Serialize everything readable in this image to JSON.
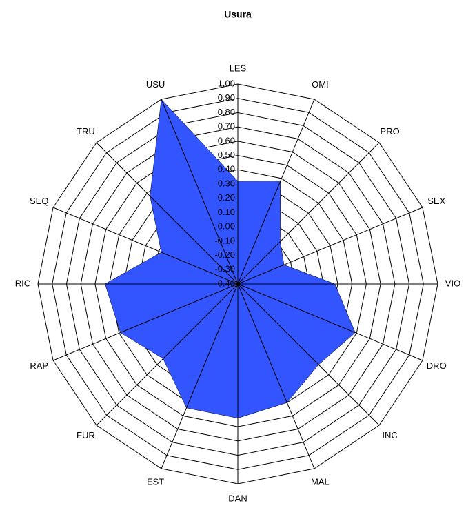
{
  "chart_data": {
    "type": "radar",
    "title": "Usura",
    "categories": [
      "LES",
      "OMI",
      "PRO",
      "SEX",
      "VIO",
      "DRO",
      "INC",
      "MAL",
      "DAN",
      "EST",
      "FUR",
      "RAP",
      "RIC",
      "SEQ",
      "TRU",
      "USU"
    ],
    "series": [
      {
        "name": "Usura",
        "color": "#3355ff",
        "values": [
          0.32,
          0.38,
          0.02,
          -0.05,
          0.28,
          0.49,
          0.4,
          0.5,
          0.54,
          0.54,
          0.34,
          0.49,
          0.53,
          0.18,
          0.47,
          1.0
        ]
      }
    ],
    "ylim": [
      -0.4,
      1.0
    ],
    "yticks": [
      {
        "value": 1.0,
        "label": "1.00"
      },
      {
        "value": 0.9,
        "label": "0.90"
      },
      {
        "value": 0.8,
        "label": "0.80"
      },
      {
        "value": 0.7,
        "label": "0.70"
      },
      {
        "value": 0.6,
        "label": "0.60"
      },
      {
        "value": 0.5,
        "label": "0.50"
      },
      {
        "value": 0.4,
        "label": "0.40"
      },
      {
        "value": 0.3,
        "label": "0.30"
      },
      {
        "value": 0.2,
        "label": "0.20"
      },
      {
        "value": 0.1,
        "label": "0.10"
      },
      {
        "value": 0,
        "label": "0.00"
      },
      {
        "value": -0.1,
        "label": "-0.10"
      },
      {
        "value": -0.2,
        "label": "-0.20"
      },
      {
        "value": -0.3,
        "label": "-0.30"
      },
      {
        "value": -0.4,
        "label": "-0.40"
      }
    ],
    "grid": true
  }
}
